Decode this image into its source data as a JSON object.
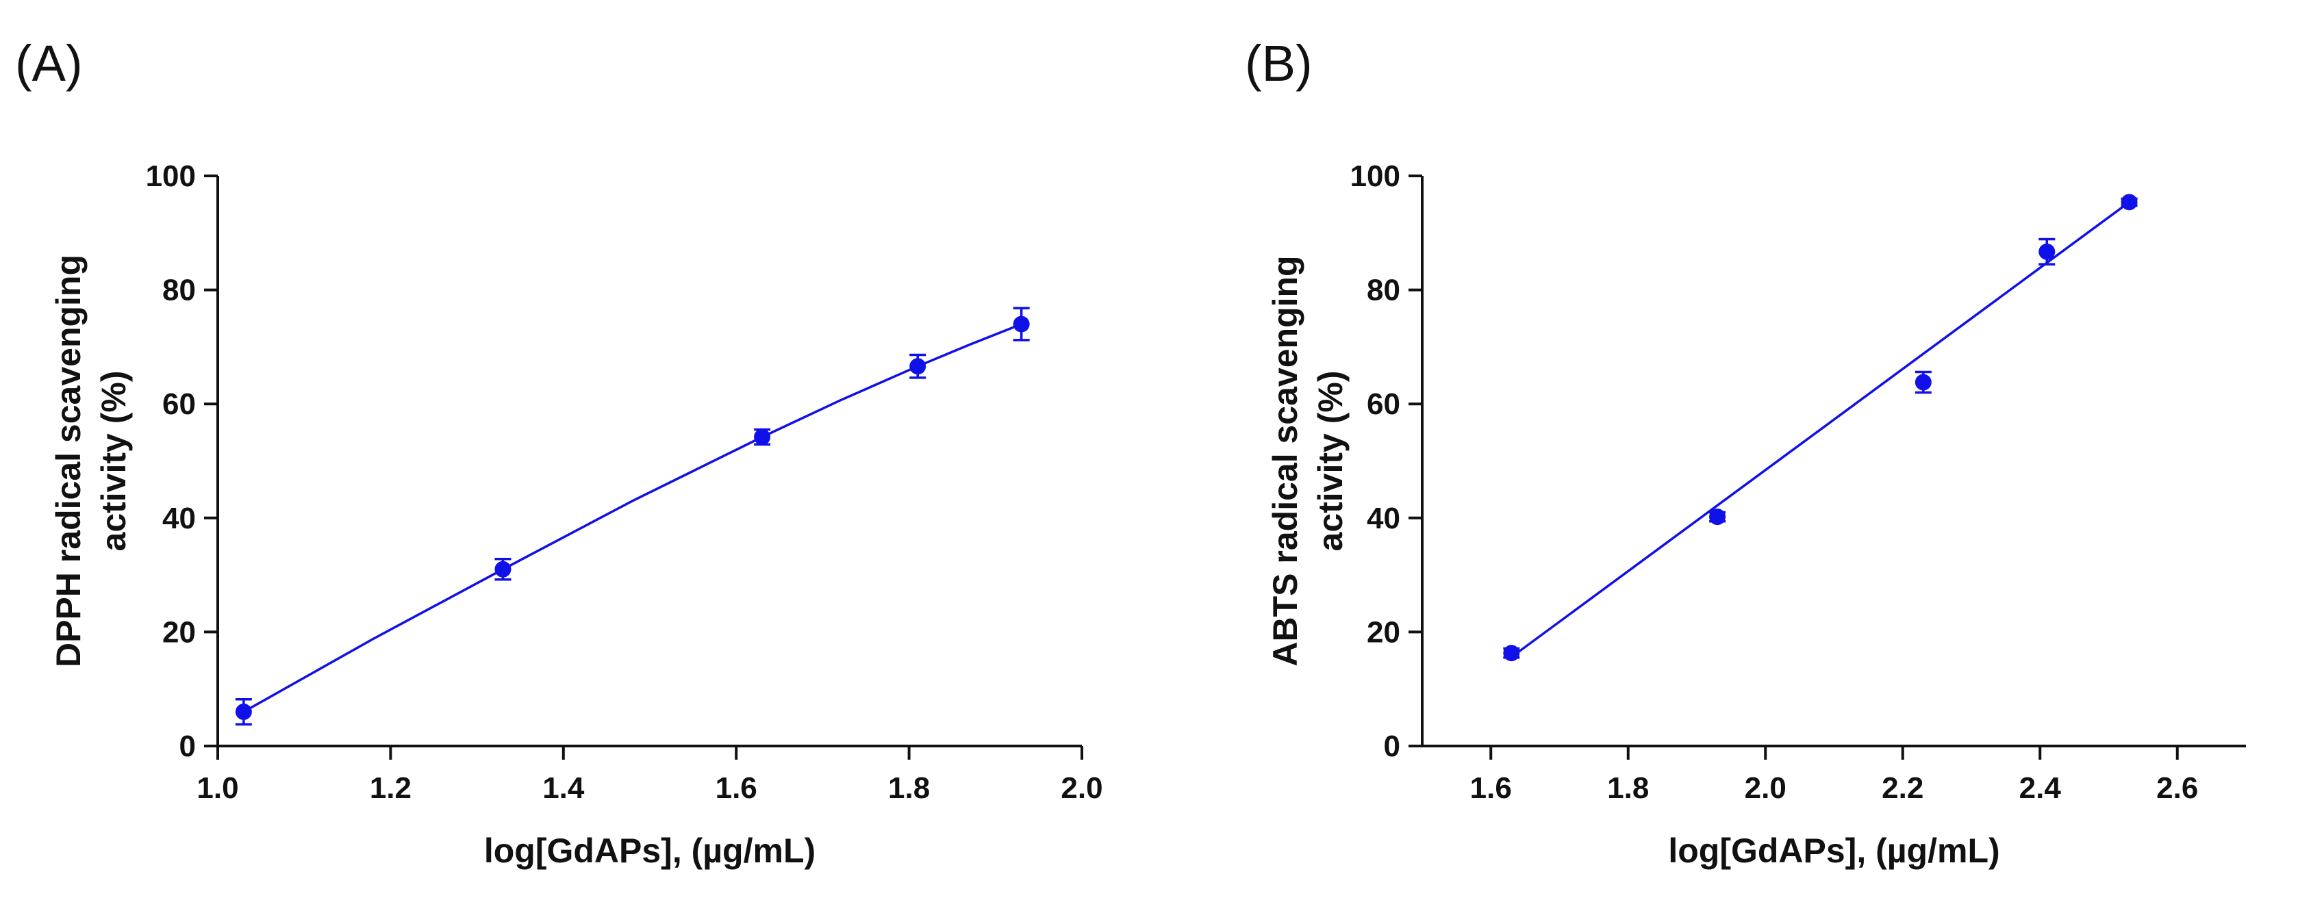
{
  "chart_data": [
    {
      "panel_label": "(A)",
      "type": "scatter",
      "title": "",
      "xlabel": "log[GdAPs], (µg/mL)",
      "ylabel_lines": [
        "DPPH radical scavenging",
        "activity (%)"
      ],
      "xlim": [
        1.0,
        2.0
      ],
      "ylim": [
        0,
        100
      ],
      "xticks": [
        1.0,
        1.2,
        1.4,
        1.6,
        1.8,
        2.0
      ],
      "xtick_labels": [
        "1.0",
        "1.2",
        "1.4",
        "1.6",
        "1.8",
        "2.0"
      ],
      "yticks": [
        0,
        20,
        40,
        60,
        80,
        100
      ],
      "ytick_labels": [
        "0",
        "20",
        "40",
        "60",
        "80",
        "100"
      ],
      "grid": false,
      "series": [
        {
          "name": "DPPH",
          "color": "#1010e8",
          "x": [
            1.03,
            1.33,
            1.63,
            1.81,
            1.93
          ],
          "y": [
            6.0,
            31.0,
            54.2,
            66.6,
            74.0
          ],
          "yerr": [
            2.2,
            1.8,
            1.3,
            2.0,
            2.8
          ]
        }
      ],
      "fit": {
        "type": "curve",
        "color": "#1010e8",
        "x": [
          1.03,
          1.18,
          1.33,
          1.48,
          1.63,
          1.72,
          1.81,
          1.87,
          1.93
        ],
        "y": [
          6.0,
          18.8,
          31.0,
          43.0,
          54.2,
          60.6,
          66.6,
          70.4,
          74.0
        ]
      }
    },
    {
      "panel_label": "(B)",
      "type": "scatter",
      "title": "",
      "xlabel": "log[GdAPs], (µg/mL)",
      "ylabel_lines": [
        "ABTS radical scavenging",
        "activity (%)"
      ],
      "xlim": [
        1.5,
        2.7
      ],
      "ylim": [
        0,
        100
      ],
      "xticks": [
        1.6,
        1.8,
        2.0,
        2.2,
        2.4,
        2.6
      ],
      "xtick_labels": [
        "1.6",
        "1.8",
        "2.0",
        "2.2",
        "2.4",
        "2.6"
      ],
      "yticks": [
        0,
        20,
        40,
        60,
        80,
        100
      ],
      "ytick_labels": [
        "0",
        "20",
        "40",
        "60",
        "80",
        "100"
      ],
      "grid": false,
      "series": [
        {
          "name": "ABTS",
          "color": "#1010e8",
          "x": [
            1.63,
            1.93,
            2.23,
            2.41,
            2.53
          ],
          "y": [
            16.3,
            40.2,
            63.8,
            86.7,
            95.4
          ],
          "yerr": [
            0.8,
            0.8,
            1.8,
            2.2,
            0.6
          ]
        }
      ],
      "fit": {
        "type": "line",
        "color": "#1010e8",
        "x": [
          1.63,
          2.53
        ],
        "y": [
          15.6,
          95.4
        ]
      }
    }
  ]
}
